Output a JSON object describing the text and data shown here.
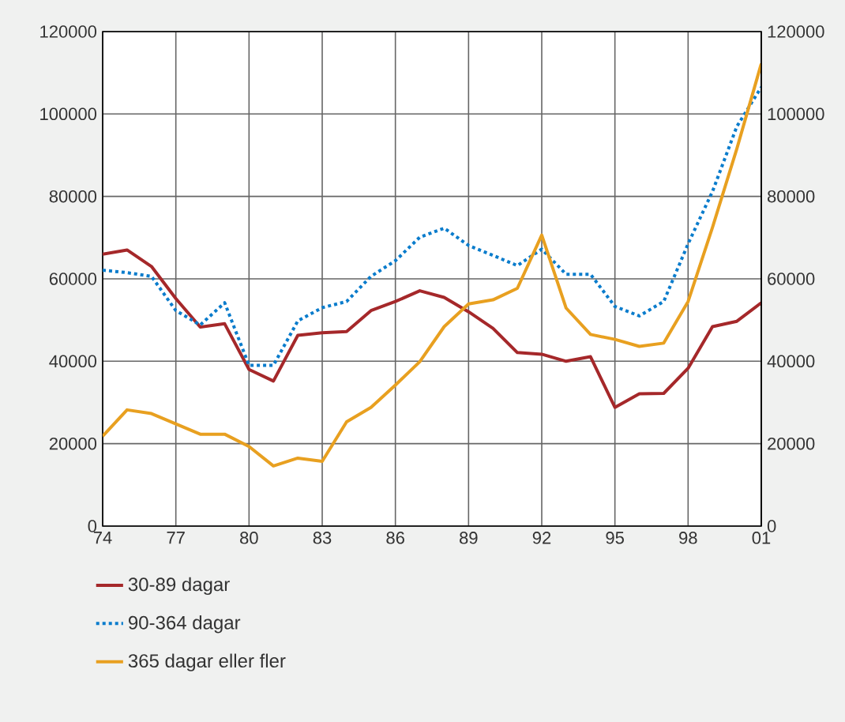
{
  "chart_data": {
    "type": "line",
    "x": [
      1974,
      1975,
      1976,
      1977,
      1978,
      1979,
      1980,
      1981,
      1982,
      1983,
      1984,
      1985,
      1986,
      1987,
      1988,
      1989,
      1990,
      1991,
      1992,
      1993,
      1994,
      1995,
      1996,
      1997,
      1998,
      1999,
      2000,
      2001
    ],
    "series": [
      {
        "name": "30-89 dagar",
        "color": "#a5282a",
        "line_style": "solid",
        "values": [
          66000,
          67000,
          63000,
          55200,
          48300,
          49100,
          38000,
          35200,
          46300,
          46900,
          47200,
          52300,
          54500,
          57100,
          55500,
          52000,
          48000,
          42100,
          41700,
          40000,
          41100,
          28800,
          32100,
          32200,
          38300,
          48400,
          49700,
          54200
        ]
      },
      {
        "name": "90-364 dagar",
        "color": "#0a7ccc",
        "line_style": "dotted",
        "values": [
          62100,
          61500,
          60600,
          52300,
          48800,
          54200,
          39000,
          39000,
          49800,
          53000,
          54500,
          60600,
          64400,
          70100,
          72300,
          68100,
          65700,
          63200,
          67200,
          61100,
          61100,
          53300,
          51000,
          54500,
          68500,
          81200,
          97000,
          106500
        ]
      },
      {
        "name": "365 dagar eller fler",
        "color": "#e8a020",
        "line_style": "solid",
        "values": [
          21800,
          28200,
          27300,
          24800,
          22300,
          22300,
          19300,
          14600,
          16500,
          15700,
          25300,
          28800,
          34200,
          39900,
          48400,
          53900,
          54900,
          57700,
          70600,
          52900,
          46500,
          45300,
          43600,
          44400,
          54500,
          72500,
          91600,
          112200
        ]
      }
    ],
    "xlim": [
      1974,
      2001
    ],
    "xticks": [
      {
        "value": 1974,
        "label": "74"
      },
      {
        "value": 1977,
        "label": "77"
      },
      {
        "value": 1980,
        "label": "80"
      },
      {
        "value": 1983,
        "label": "83"
      },
      {
        "value": 1986,
        "label": "86"
      },
      {
        "value": 1989,
        "label": "89"
      },
      {
        "value": 1992,
        "label": "92"
      },
      {
        "value": 1995,
        "label": "95"
      },
      {
        "value": 1998,
        "label": "98"
      },
      {
        "value": 2001,
        "label": "01"
      }
    ],
    "ylim": [
      0,
      120000
    ],
    "yticks": [
      0,
      20000,
      40000,
      60000,
      80000,
      100000,
      120000
    ],
    "y2lim": [
      0,
      120000
    ],
    "y2ticks": [
      0,
      20000,
      40000,
      60000,
      80000,
      100000,
      120000
    ],
    "grid": true,
    "legend": "bottom left"
  }
}
